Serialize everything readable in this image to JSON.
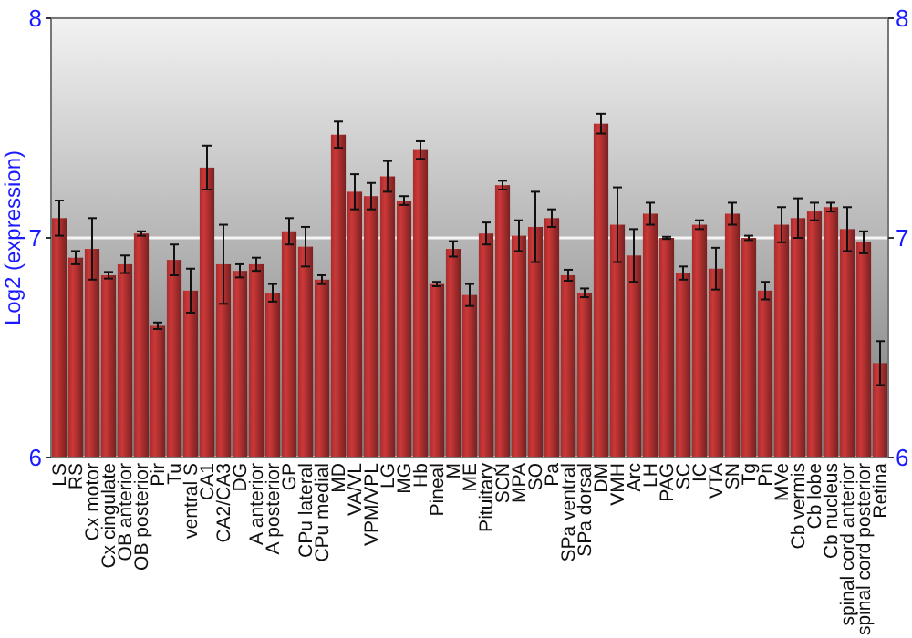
{
  "chart_data": {
    "type": "bar",
    "ylabel": "Log2 (expression)",
    "categories": [
      "LS",
      "RS",
      "Cx motor",
      "Cx cingulate",
      "OB anterior",
      "OB posterior",
      "Pir",
      "Tu",
      "ventral S",
      "CA1",
      "CA2/CA3",
      "DG",
      "A anterior",
      "A posterior",
      "GP",
      "CPu lateral",
      "CPu medial",
      "MD",
      "VA/VL",
      "VPM/VPL",
      "LG",
      "MG",
      "Hb",
      "Pineal",
      "M",
      "ME",
      "Pituitary",
      "SCN",
      "MPA",
      "SO",
      "Pa",
      "SPa ventral",
      "SPa dorsal",
      "DM",
      "VMH",
      "Arc",
      "LH",
      "PAG",
      "SC",
      "IC",
      "VTA",
      "SN",
      "Tg",
      "Pn",
      "MVe",
      "Cb vermis",
      "Cb lobe",
      "Cb nucleus",
      "spinal cord anterior",
      "spinal cord posterior",
      "Retina"
    ],
    "series": [
      {
        "color": "#b83232",
        "values": [
          7.09,
          6.91,
          6.95,
          6.83,
          6.88,
          7.02,
          6.6,
          6.9,
          6.76,
          7.32,
          6.88,
          6.85,
          6.88,
          6.75,
          7.03,
          6.96,
          6.81,
          7.47,
          7.21,
          7.19,
          7.28,
          7.17,
          7.4,
          6.79,
          6.95,
          6.74,
          7.02,
          7.24,
          7.01,
          7.05,
          7.09,
          6.83,
          6.75,
          7.52,
          7.06,
          6.92,
          7.11,
          7.0,
          6.84,
          7.06,
          6.86,
          7.11,
          7.0,
          6.76,
          7.06,
          7.09,
          7.12,
          7.14,
          7.04,
          6.98,
          6.43
        ],
        "errors": [
          0.08,
          0.03,
          0.14,
          0.015,
          0.04,
          0.01,
          0.015,
          0.07,
          0.1,
          0.1,
          0.18,
          0.03,
          0.03,
          0.04,
          0.06,
          0.09,
          0.02,
          0.06,
          0.08,
          0.06,
          0.07,
          0.02,
          0.04,
          0.01,
          0.035,
          0.05,
          0.05,
          0.02,
          0.07,
          0.16,
          0.04,
          0.025,
          0.02,
          0.045,
          0.17,
          0.12,
          0.05,
          0.005,
          0.03,
          0.02,
          0.095,
          0.05,
          0.01,
          0.04,
          0.08,
          0.09,
          0.04,
          0.02,
          0.1,
          0.05,
          0.1
        ]
      }
    ],
    "ylim": [
      6,
      8
    ],
    "yticks": [
      6,
      7,
      8
    ],
    "y2lim": [
      6,
      8
    ],
    "y2ticks": [
      6,
      7,
      8
    ],
    "grid": "y"
  }
}
